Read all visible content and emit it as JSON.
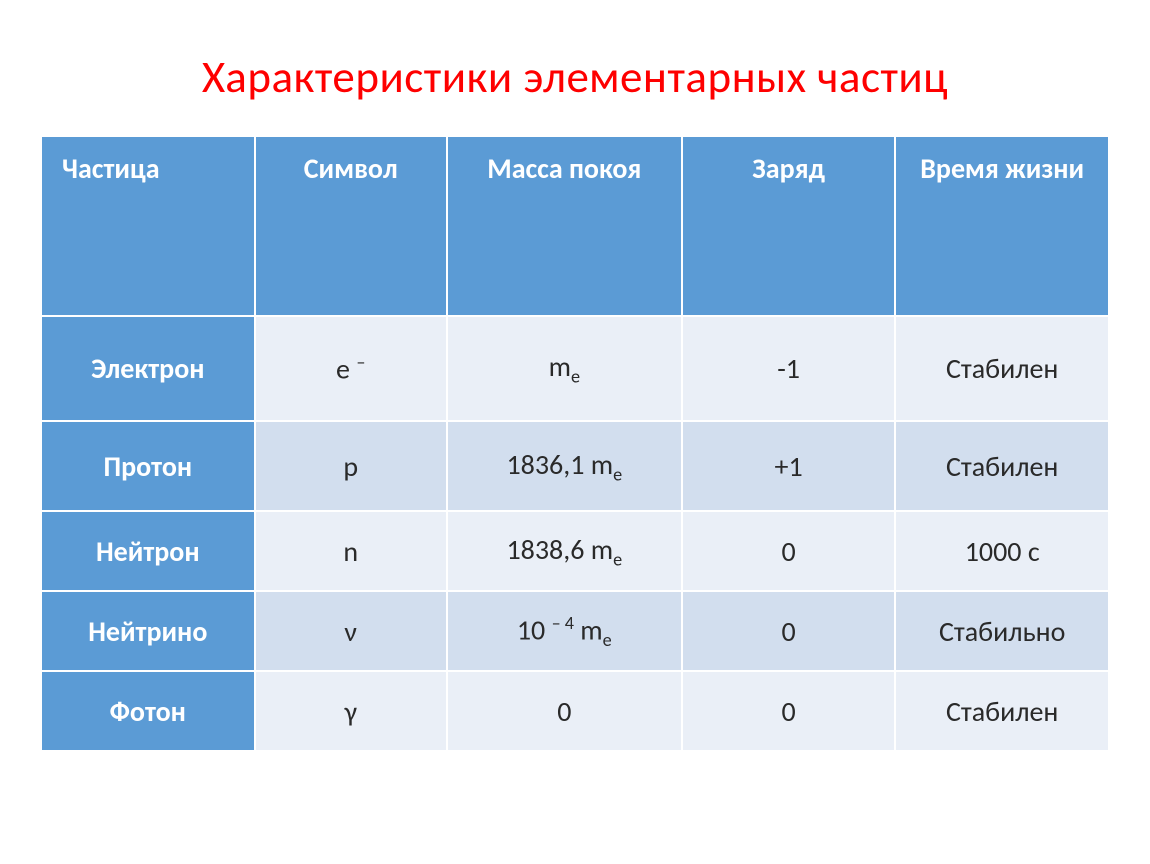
{
  "title": "Характеристики элементарных частиц",
  "colors": {
    "title": "#fe0000",
    "header_bg": "#5b9bd5",
    "header_fg": "#ffffff",
    "rowlabel_bg": "#5b9bd5",
    "row_odd_bg": "#eaeff7",
    "row_even_bg": "#d2deee",
    "cell_fg": "#2a2a2a",
    "border": "#ffffff"
  },
  "table": {
    "columns": [
      {
        "label": "Частица",
        "width": "20%",
        "align": "left"
      },
      {
        "label": "Символ",
        "width": "18%",
        "align": "center"
      },
      {
        "label": "Масса покоя",
        "width": "22%",
        "align": "center"
      },
      {
        "label": "Заряд",
        "width": "20%",
        "align": "center"
      },
      {
        "label": "Время жизни",
        "width": "20%",
        "align": "center"
      }
    ],
    "rows": [
      {
        "particle": "Электрон",
        "symbol_html": "e <span class='sup'>–</span>",
        "mass_html": "m<span class='sub'>e</span>",
        "charge": "-1",
        "lifetime": "Стабилен"
      },
      {
        "particle": "Протон",
        "symbol_html": "p",
        "mass_html": "1836,1 m<span class='sub'>e</span>",
        "charge": "+1",
        "lifetime": "Стабилен"
      },
      {
        "particle": "Нейтрон",
        "symbol_html": "n",
        "mass_html": "1838,6 m<span class='sub'>e</span>",
        "charge": "0",
        "lifetime": "1000 с"
      },
      {
        "particle": "Нейтрино",
        "symbol_html": "ν",
        "mass_html": "10 <span class='sup'>– 4</span> m<span class='sub'>e</span>",
        "charge": "0",
        "lifetime": "Стабильно"
      },
      {
        "particle": "Фотон",
        "symbol_html": "γ",
        "mass_html": "0",
        "charge": "0",
        "lifetime": "Стабилен"
      }
    ]
  }
}
